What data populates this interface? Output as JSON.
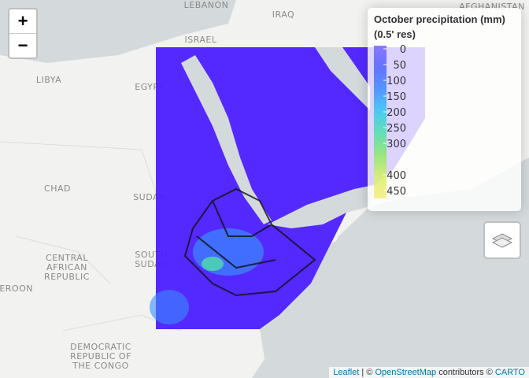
{
  "map": {
    "zoom_in": "+",
    "zoom_out": "−",
    "place_labels": [
      "LEBANON",
      "ISRAEL",
      "IRAQ",
      "LIBYA",
      "EGYPT",
      "CHAD",
      "SUDAN",
      "SOUTH",
      "SUDAN",
      "CENTRAL",
      "AFRICAN",
      "REPUBLIC",
      "CAMEROON",
      "DEMOCRATIC",
      "REPUBLIC OF",
      "THE CONGO",
      "AFGHANISTAN"
    ],
    "attribution": [
      "Leaflet",
      " | © ",
      "OpenStreetMap",
      " contributors © ",
      "CARTO"
    ]
  },
  "chart_data": {
    "type": "colorbar",
    "title": "October precipitation (mm)",
    "subtitle": "(0.5' res)",
    "ylim": [
      0,
      450
    ],
    "yticks": [
      0,
      50,
      100,
      150,
      200,
      250,
      300,
      400,
      450
    ],
    "colors": [
      "#7a66ff",
      "#4f63ff",
      "#3b8cff",
      "#32c8f0",
      "#4fe0a8",
      "#8ee86a",
      "#d8ef6a",
      "#f6ee7c"
    ]
  }
}
